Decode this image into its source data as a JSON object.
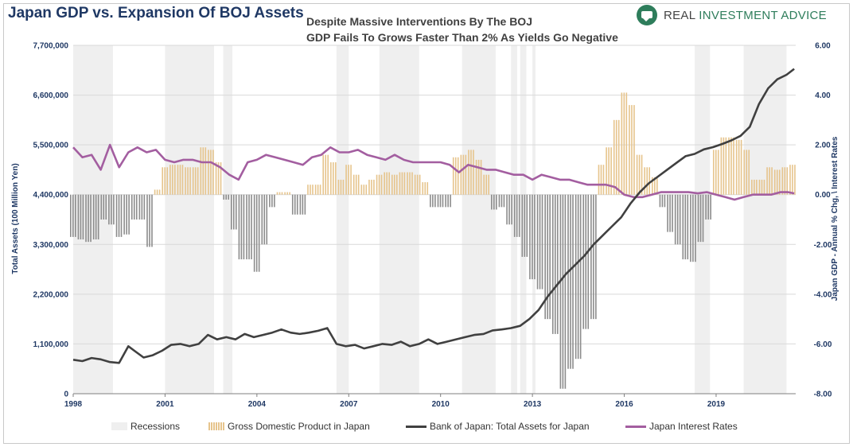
{
  "header": {
    "title": "Japan GDP vs. Expansion Of BOJ Assets",
    "subtitle_line1": "Despite Massive Interventions By The BOJ",
    "subtitle_line2": "GDP Fails To Grows Faster Than 2% As Yields Go Negative",
    "logo_text_a": "REAL ",
    "logo_text_b": "INVESTMENT ADVICE"
  },
  "colors": {
    "recession": "#efefef",
    "gdp": "#e6c48c",
    "gdp_negative": "#8c8c8c",
    "boj": "#404040",
    "rate": "#a35ea0",
    "axis_text": "#1f3864",
    "grid": "#d9d9d9"
  },
  "chart_data": {
    "type": "bar+line",
    "xlabel": "",
    "ylabel": "Total Assets (100 Million Yen)",
    "y2label": "Japan GDP - Annual % Chg, \\ Interest Rates",
    "x_ticks": [
      "1998",
      "2001",
      "2004",
      "2007",
      "2010",
      "2013",
      "2016",
      "2019"
    ],
    "xlim": [
      1998.0,
      2021.6
    ],
    "ylim": [
      0,
      7700000
    ],
    "y2lim": [
      -8,
      6
    ],
    "y_ticks": [
      "0",
      "1,100,000",
      "2,200,000",
      "3,300,000",
      "4,400,000",
      "5,500,000",
      "6,600,000",
      "7,700,000"
    ],
    "y2_ticks": [
      "-8.00",
      "-6.00",
      "-4.00",
      "-2.00",
      "0.00",
      "2.00",
      "4.00",
      "6.00"
    ],
    "recessions": [
      [
        1998.0,
        1999.3
      ],
      [
        2001.0,
        2002.6
      ],
      [
        2002.9,
        2003.2
      ],
      [
        2006.6,
        2007.0
      ],
      [
        2008.0,
        2009.3
      ],
      [
        2010.7,
        2011.8
      ],
      [
        2012.3,
        2012.5
      ],
      [
        2012.6,
        2012.8
      ],
      [
        2013.0,
        2013.1
      ],
      [
        2018.3,
        2018.8
      ],
      [
        2019.9,
        2021.3
      ]
    ],
    "series": [
      {
        "name": "Gross Domestic Product in Japan",
        "kind": "bar",
        "axis": "right",
        "points": [
          [
            1998.0,
            -1.7
          ],
          [
            1998.25,
            -1.8
          ],
          [
            1998.5,
            -1.9
          ],
          [
            1998.75,
            -1.8
          ],
          [
            1999.0,
            -1.0
          ],
          [
            1999.25,
            -1.2
          ],
          [
            1999.5,
            -1.7
          ],
          [
            1999.75,
            -1.6
          ],
          [
            2000.0,
            -1.0
          ],
          [
            2000.25,
            -1.0
          ],
          [
            2000.5,
            -2.1
          ],
          [
            2000.75,
            0.2
          ],
          [
            2001.0,
            1.1
          ],
          [
            2001.25,
            1.2
          ],
          [
            2001.5,
            1.2
          ],
          [
            2001.75,
            1.1
          ],
          [
            2002.0,
            1.1
          ],
          [
            2002.25,
            1.9
          ],
          [
            2002.5,
            1.8
          ],
          [
            2002.75,
            1.3
          ],
          [
            2003.0,
            -0.2
          ],
          [
            2003.25,
            -1.4
          ],
          [
            2003.5,
            -2.6
          ],
          [
            2003.75,
            -2.6
          ],
          [
            2004.0,
            -3.1
          ],
          [
            2004.25,
            -2.0
          ],
          [
            2004.5,
            -0.5
          ],
          [
            2004.75,
            0.1
          ],
          [
            2005.0,
            0.1
          ],
          [
            2005.25,
            -0.8
          ],
          [
            2005.5,
            -0.8
          ],
          [
            2005.75,
            0.4
          ],
          [
            2006.0,
            0.4
          ],
          [
            2006.25,
            1.6
          ],
          [
            2006.5,
            1.3
          ],
          [
            2006.75,
            0.6
          ],
          [
            2007.0,
            1.2
          ],
          [
            2007.25,
            0.8
          ],
          [
            2007.5,
            0.4
          ],
          [
            2007.75,
            0.6
          ],
          [
            2008.0,
            0.8
          ],
          [
            2008.25,
            0.9
          ],
          [
            2008.5,
            0.8
          ],
          [
            2008.75,
            0.9
          ],
          [
            2009.0,
            0.9
          ],
          [
            2009.25,
            0.8
          ],
          [
            2009.5,
            0.5
          ],
          [
            2009.75,
            -0.5
          ],
          [
            2010.0,
            -0.5
          ],
          [
            2010.25,
            -0.5
          ],
          [
            2010.5,
            1.5
          ],
          [
            2010.75,
            1.6
          ],
          [
            2011.0,
            1.8
          ],
          [
            2011.25,
            1.4
          ],
          [
            2011.5,
            0.8
          ],
          [
            2011.75,
            -0.6
          ],
          [
            2012.0,
            -0.5
          ],
          [
            2012.25,
            -1.2
          ],
          [
            2012.5,
            -1.7
          ],
          [
            2012.75,
            -2.5
          ],
          [
            2013.0,
            -3.4
          ],
          [
            2013.25,
            -3.8
          ],
          [
            2013.5,
            -5.0
          ],
          [
            2013.75,
            -5.6
          ],
          [
            2014.0,
            -7.8
          ],
          [
            2014.25,
            -7.0
          ],
          [
            2014.5,
            -6.6
          ],
          [
            2014.75,
            -5.4
          ],
          [
            2015.0,
            -5.0
          ],
          [
            2015.25,
            1.2
          ],
          [
            2015.5,
            1.9
          ],
          [
            2015.75,
            3.0
          ],
          [
            2016.0,
            4.1
          ],
          [
            2016.25,
            3.6
          ],
          [
            2016.5,
            1.6
          ],
          [
            2016.75,
            1.1
          ],
          [
            2017.0,
            0.7
          ],
          [
            2017.25,
            -0.5
          ],
          [
            2017.5,
            -1.5
          ],
          [
            2017.75,
            -2.0
          ],
          [
            2018.0,
            -2.6
          ],
          [
            2018.25,
            -2.7
          ],
          [
            2018.5,
            -1.9
          ],
          [
            2018.75,
            -1.0
          ],
          [
            2019.0,
            1.8
          ],
          [
            2019.25,
            2.3
          ],
          [
            2019.5,
            2.3
          ],
          [
            2019.75,
            2.2
          ],
          [
            2020.0,
            1.8
          ],
          [
            2020.25,
            0.6
          ],
          [
            2020.5,
            0.6
          ],
          [
            2020.75,
            1.1
          ],
          [
            2021.0,
            1.0
          ],
          [
            2021.25,
            1.1
          ],
          [
            2021.5,
            1.2
          ]
        ]
      },
      {
        "name": "Bank of Japan: Total Assets for Japan",
        "kind": "line",
        "axis": "left",
        "points": [
          [
            1998.0,
            750000
          ],
          [
            1998.3,
            720000
          ],
          [
            1998.6,
            790000
          ],
          [
            1998.9,
            760000
          ],
          [
            1999.2,
            700000
          ],
          [
            1999.5,
            680000
          ],
          [
            1999.8,
            1050000
          ],
          [
            2000.0,
            950000
          ],
          [
            2000.3,
            800000
          ],
          [
            2000.6,
            850000
          ],
          [
            2000.9,
            950000
          ],
          [
            2001.2,
            1080000
          ],
          [
            2001.5,
            1100000
          ],
          [
            2001.8,
            1050000
          ],
          [
            2002.1,
            1100000
          ],
          [
            2002.4,
            1300000
          ],
          [
            2002.7,
            1200000
          ],
          [
            2003.0,
            1250000
          ],
          [
            2003.3,
            1200000
          ],
          [
            2003.6,
            1320000
          ],
          [
            2003.9,
            1250000
          ],
          [
            2004.2,
            1300000
          ],
          [
            2004.5,
            1350000
          ],
          [
            2004.8,
            1420000
          ],
          [
            2005.1,
            1350000
          ],
          [
            2005.4,
            1320000
          ],
          [
            2005.7,
            1350000
          ],
          [
            2006.0,
            1390000
          ],
          [
            2006.3,
            1450000
          ],
          [
            2006.6,
            1100000
          ],
          [
            2006.9,
            1050000
          ],
          [
            2007.2,
            1080000
          ],
          [
            2007.5,
            1000000
          ],
          [
            2007.8,
            1050000
          ],
          [
            2008.1,
            1100000
          ],
          [
            2008.4,
            1080000
          ],
          [
            2008.7,
            1150000
          ],
          [
            2009.0,
            1050000
          ],
          [
            2009.3,
            1100000
          ],
          [
            2009.6,
            1200000
          ],
          [
            2009.9,
            1100000
          ],
          [
            2010.2,
            1150000
          ],
          [
            2010.5,
            1200000
          ],
          [
            2010.8,
            1250000
          ],
          [
            2011.1,
            1300000
          ],
          [
            2011.4,
            1320000
          ],
          [
            2011.7,
            1400000
          ],
          [
            2012.0,
            1420000
          ],
          [
            2012.3,
            1450000
          ],
          [
            2012.6,
            1500000
          ],
          [
            2012.9,
            1650000
          ],
          [
            2013.2,
            1850000
          ],
          [
            2013.5,
            2150000
          ],
          [
            2013.8,
            2400000
          ],
          [
            2014.1,
            2650000
          ],
          [
            2014.4,
            2850000
          ],
          [
            2014.7,
            3050000
          ],
          [
            2015.0,
            3300000
          ],
          [
            2015.3,
            3500000
          ],
          [
            2015.6,
            3700000
          ],
          [
            2015.9,
            3900000
          ],
          [
            2016.2,
            4200000
          ],
          [
            2016.5,
            4450000
          ],
          [
            2016.8,
            4650000
          ],
          [
            2017.1,
            4800000
          ],
          [
            2017.4,
            4950000
          ],
          [
            2017.7,
            5100000
          ],
          [
            2018.0,
            5250000
          ],
          [
            2018.3,
            5300000
          ],
          [
            2018.6,
            5400000
          ],
          [
            2018.9,
            5450000
          ],
          [
            2019.2,
            5520000
          ],
          [
            2019.5,
            5600000
          ],
          [
            2019.8,
            5700000
          ],
          [
            2020.1,
            5900000
          ],
          [
            2020.4,
            6400000
          ],
          [
            2020.7,
            6750000
          ],
          [
            2021.0,
            6950000
          ],
          [
            2021.3,
            7050000
          ],
          [
            2021.55,
            7180000
          ]
        ]
      },
      {
        "name": "Japan Interest Rates",
        "kind": "line",
        "axis": "right",
        "points": [
          [
            1998.0,
            1.9
          ],
          [
            1998.3,
            1.5
          ],
          [
            1998.6,
            1.6
          ],
          [
            1998.9,
            1.0
          ],
          [
            1999.2,
            2.0
          ],
          [
            1999.5,
            1.1
          ],
          [
            1999.8,
            1.7
          ],
          [
            2000.1,
            1.9
          ],
          [
            2000.4,
            1.7
          ],
          [
            2000.7,
            1.8
          ],
          [
            2001.0,
            1.4
          ],
          [
            2001.3,
            1.3
          ],
          [
            2001.6,
            1.4
          ],
          [
            2001.9,
            1.4
          ],
          [
            2002.2,
            1.3
          ],
          [
            2002.5,
            1.3
          ],
          [
            2002.8,
            1.1
          ],
          [
            2003.1,
            0.8
          ],
          [
            2003.4,
            0.6
          ],
          [
            2003.7,
            1.3
          ],
          [
            2004.0,
            1.4
          ],
          [
            2004.3,
            1.6
          ],
          [
            2004.6,
            1.5
          ],
          [
            2004.9,
            1.4
          ],
          [
            2005.2,
            1.3
          ],
          [
            2005.5,
            1.2
          ],
          [
            2005.8,
            1.5
          ],
          [
            2006.1,
            1.6
          ],
          [
            2006.4,
            1.9
          ],
          [
            2006.7,
            1.7
          ],
          [
            2007.0,
            1.7
          ],
          [
            2007.3,
            1.8
          ],
          [
            2007.6,
            1.6
          ],
          [
            2007.9,
            1.5
          ],
          [
            2008.2,
            1.4
          ],
          [
            2008.5,
            1.6
          ],
          [
            2008.8,
            1.4
          ],
          [
            2009.1,
            1.3
          ],
          [
            2009.4,
            1.3
          ],
          [
            2009.7,
            1.3
          ],
          [
            2010.0,
            1.3
          ],
          [
            2010.3,
            1.2
          ],
          [
            2010.6,
            0.9
          ],
          [
            2010.9,
            1.2
          ],
          [
            2011.2,
            1.1
          ],
          [
            2011.5,
            1.0
          ],
          [
            2011.8,
            1.0
          ],
          [
            2012.1,
            0.9
          ],
          [
            2012.4,
            0.8
          ],
          [
            2012.7,
            0.8
          ],
          [
            2013.0,
            0.6
          ],
          [
            2013.3,
            0.8
          ],
          [
            2013.6,
            0.7
          ],
          [
            2013.9,
            0.6
          ],
          [
            2014.2,
            0.6
          ],
          [
            2014.5,
            0.5
          ],
          [
            2014.8,
            0.4
          ],
          [
            2015.1,
            0.4
          ],
          [
            2015.4,
            0.4
          ],
          [
            2015.7,
            0.3
          ],
          [
            2016.0,
            0.0
          ],
          [
            2016.3,
            -0.1
          ],
          [
            2016.6,
            -0.1
          ],
          [
            2016.9,
            0.0
          ],
          [
            2017.2,
            0.1
          ],
          [
            2017.5,
            0.1
          ],
          [
            2017.8,
            0.1
          ],
          [
            2018.1,
            0.1
          ],
          [
            2018.4,
            0.05
          ],
          [
            2018.7,
            0.1
          ],
          [
            2019.0,
            0.0
          ],
          [
            2019.3,
            -0.1
          ],
          [
            2019.6,
            -0.2
          ],
          [
            2019.9,
            -0.1
          ],
          [
            2020.2,
            0.0
          ],
          [
            2020.5,
            0.0
          ],
          [
            2020.8,
            0.0
          ],
          [
            2021.1,
            0.1
          ],
          [
            2021.35,
            0.1
          ],
          [
            2021.55,
            0.05
          ]
        ]
      }
    ],
    "legend": [
      {
        "key": "rec",
        "label": "Recessions"
      },
      {
        "key": "gdp",
        "label": "Gross Domestic Product in Japan"
      },
      {
        "key": "boj",
        "label": "Bank of Japan: Total Assets for Japan"
      },
      {
        "key": "rate",
        "label": "Japan Interest Rates"
      }
    ],
    "legend_placement": "bottom",
    "grid": true
  }
}
